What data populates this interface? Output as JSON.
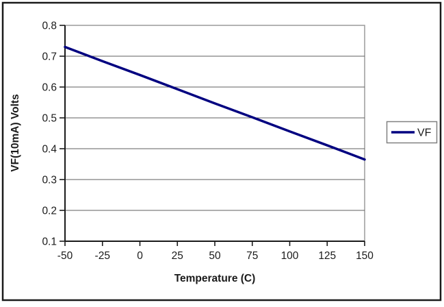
{
  "chart_data": {
    "type": "line",
    "title": "",
    "xlabel": "Temperature (C)",
    "ylabel": "VF(10mA) Volts",
    "xlim": [
      -50,
      150
    ],
    "ylim": [
      0.1,
      0.8
    ],
    "x_ticks": [
      -50,
      -25,
      0,
      25,
      50,
      75,
      100,
      125,
      150
    ],
    "y_ticks": [
      0.1,
      0.2,
      0.3,
      0.4,
      0.5,
      0.6,
      0.7,
      0.8
    ],
    "y_tick_decimals": 1,
    "grid": "horizontal",
    "legend_position": "right-outside",
    "series": [
      {
        "name": "VF",
        "color": "#000080",
        "x": [
          -50,
          -25,
          0,
          25,
          50,
          75,
          100,
          125,
          150
        ],
        "values": [
          0.73,
          0.684,
          0.639,
          0.593,
          0.547,
          0.502,
          0.456,
          0.411,
          0.365
        ]
      }
    ]
  },
  "colors": {
    "background": "#ffffff",
    "outer_border": "#1a1a1a",
    "plot_border": "#9a9a9a",
    "gridline": "#5f5f5f",
    "axis": "#1a1a1a",
    "tick": "#1a1a1a",
    "text": "#1a1a1a",
    "legend_border": "#808080",
    "series_line": "#000080"
  }
}
